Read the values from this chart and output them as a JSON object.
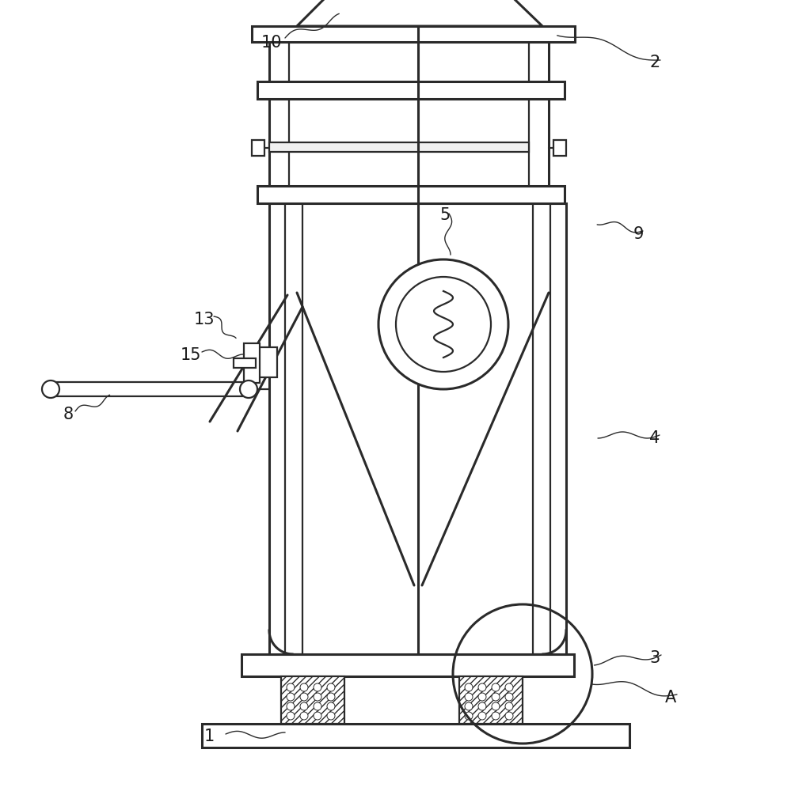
{
  "bg_color": "#ffffff",
  "lc": "#2a2a2a",
  "lw": 1.6,
  "lw2": 2.2,
  "lw3": 1.0
}
